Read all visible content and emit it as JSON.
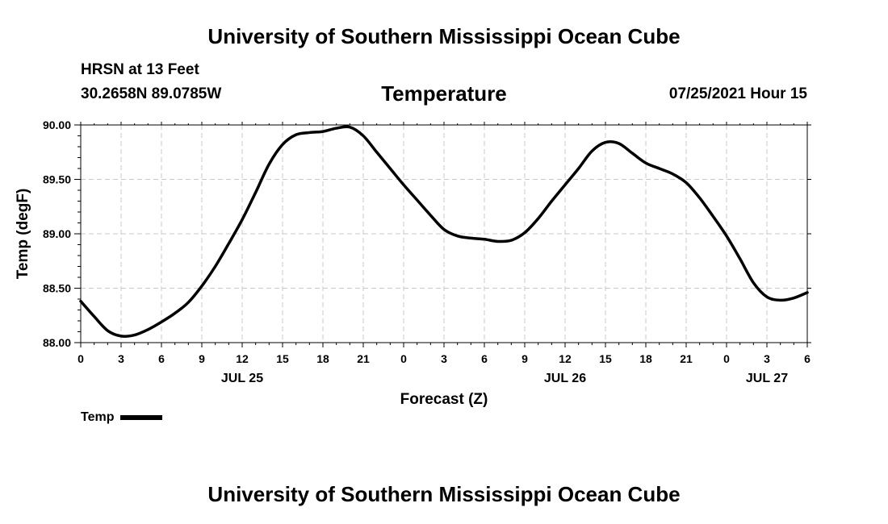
{
  "header": {
    "title": "University of Southern Mississippi Ocean Cube",
    "station": "HRSN at 13 Feet",
    "coordinates": "30.2658N  89.0785W",
    "parameter": "Temperature",
    "datetime": "07/25/2021 Hour 15"
  },
  "footer": {
    "title": "University of Southern Mississippi Ocean Cube"
  },
  "legend": {
    "label": "Temp"
  },
  "chart_data": {
    "type": "line",
    "title": "Temperature",
    "xlabel": "Forecast (Z)",
    "ylabel": "Temp (degF)",
    "xlim": [
      0,
      54
    ],
    "ylim": [
      88.0,
      90.0
    ],
    "grid": true,
    "legend_position": "bottom-left",
    "x_ticks": [
      0,
      3,
      6,
      9,
      12,
      15,
      18,
      21,
      24,
      27,
      30,
      33,
      36,
      39,
      42,
      45,
      48,
      51,
      54
    ],
    "x_tick_labels": [
      "0",
      "3",
      "6",
      "9",
      "12",
      "15",
      "18",
      "21",
      "0",
      "3",
      "6",
      "9",
      "12",
      "15",
      "18",
      "21",
      "0",
      "3",
      "6"
    ],
    "date_labels": [
      {
        "at": 12,
        "label": "JUL 25"
      },
      {
        "at": 36,
        "label": "JUL 26"
      },
      {
        "at": 51,
        "label": "JUL 27"
      }
    ],
    "y_ticks": [
      88.0,
      88.5,
      89.0,
      89.5,
      90.0
    ],
    "y_tick_labels": [
      "88.00",
      "88.50",
      "89.00",
      "89.50",
      "90.00"
    ],
    "series": [
      {
        "name": "Temp",
        "color": "#000000",
        "x": [
          0,
          1,
          2,
          3,
          4,
          5,
          6,
          7,
          8,
          9,
          10,
          11,
          12,
          13,
          14,
          15,
          16,
          17,
          18,
          19,
          20,
          21,
          22,
          23,
          24,
          25,
          26,
          27,
          28,
          29,
          30,
          31,
          32,
          33,
          34,
          35,
          36,
          37,
          38,
          39,
          40,
          41,
          42,
          43,
          44,
          45,
          46,
          47,
          48,
          49,
          50,
          51,
          52,
          53,
          54
        ],
        "values": [
          88.38,
          88.24,
          88.11,
          88.06,
          88.07,
          88.12,
          88.19,
          88.27,
          88.37,
          88.52,
          88.7,
          88.91,
          89.13,
          89.38,
          89.64,
          89.82,
          89.91,
          89.93,
          89.94,
          89.97,
          89.98,
          89.9,
          89.75,
          89.6,
          89.45,
          89.31,
          89.17,
          89.04,
          88.98,
          88.96,
          88.95,
          88.93,
          88.94,
          89.01,
          89.14,
          89.3,
          89.45,
          89.6,
          89.76,
          89.84,
          89.83,
          89.74,
          89.65,
          89.6,
          89.55,
          89.47,
          89.33,
          89.16,
          88.98,
          88.77,
          88.55,
          88.42,
          88.39,
          88.41,
          88.46
        ]
      }
    ]
  }
}
